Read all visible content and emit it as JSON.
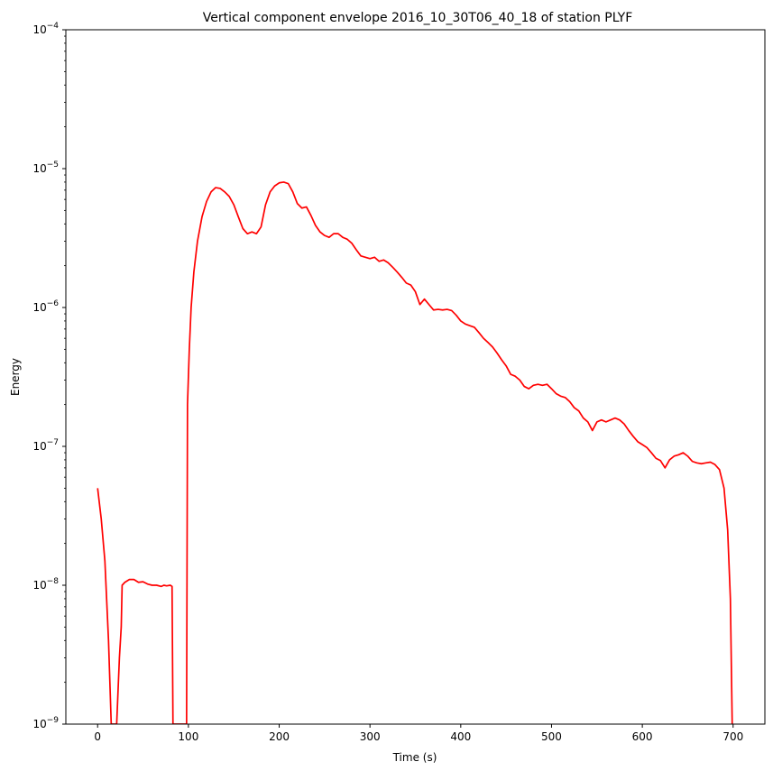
{
  "chart_data": {
    "type": "line",
    "title": "Vertical component envelope 2016_10_30T06_40_18 of station PLYF",
    "xlabel": "Time (s)",
    "ylabel": "Energy",
    "xlim": [
      -35,
      735
    ],
    "ylim": [
      1e-09,
      0.0001
    ],
    "yscale": "log",
    "grid": false,
    "x_ticks": [
      0,
      100,
      200,
      300,
      400,
      500,
      600,
      700
    ],
    "x_tick_labels": [
      "0",
      "100",
      "200",
      "300",
      "400",
      "500",
      "600",
      "700"
    ],
    "y_ticks": [
      1e-09,
      1e-08,
      1e-07,
      1e-06,
      1e-05,
      0.0001
    ],
    "y_tick_labels": [
      {
        "base": "10",
        "exp": "−9"
      },
      {
        "base": "10",
        "exp": "−8"
      },
      {
        "base": "10",
        "exp": "−7"
      },
      {
        "base": "10",
        "exp": "−6"
      },
      {
        "base": "10",
        "exp": "−5"
      },
      {
        "base": "10",
        "exp": "−4"
      }
    ],
    "series": [
      {
        "color": "#ff0000",
        "points": [
          [
            0,
            5e-08
          ],
          [
            4,
            3e-08
          ],
          [
            8,
            1.5e-08
          ],
          [
            12,
            4e-09
          ],
          [
            15,
            1e-09
          ],
          [
            21,
            1e-09
          ],
          [
            24,
            3e-09
          ],
          [
            26,
            5e-09
          ],
          [
            27,
            1e-08
          ],
          [
            30,
            1.05e-08
          ],
          [
            35,
            1.1e-08
          ],
          [
            40,
            1.1e-08
          ],
          [
            45,
            1.05e-08
          ],
          [
            50,
            1.06e-08
          ],
          [
            55,
            1.02e-08
          ],
          [
            60,
            1e-08
          ],
          [
            65,
            1e-08
          ],
          [
            70,
            9.8e-09
          ],
          [
            73,
            1e-08
          ],
          [
            76,
            9.9e-09
          ],
          [
            80,
            1e-08
          ],
          [
            82,
            9.8e-09
          ],
          [
            83,
            1e-09
          ],
          [
            98,
            1e-09
          ],
          [
            99,
            2e-07
          ],
          [
            101,
            5e-07
          ],
          [
            103,
            1e-06
          ],
          [
            106,
            1.8e-06
          ],
          [
            110,
            3e-06
          ],
          [
            115,
            4.5e-06
          ],
          [
            120,
            5.8e-06
          ],
          [
            125,
            6.8e-06
          ],
          [
            130,
            7.3e-06
          ],
          [
            135,
            7.2e-06
          ],
          [
            140,
            6.8e-06
          ],
          [
            145,
            6.3e-06
          ],
          [
            150,
            5.5e-06
          ],
          [
            155,
            4.5e-06
          ],
          [
            160,
            3.7e-06
          ],
          [
            165,
            3.4e-06
          ],
          [
            170,
            3.5e-06
          ],
          [
            175,
            3.4e-06
          ],
          [
            180,
            3.8e-06
          ],
          [
            185,
            5.5e-06
          ],
          [
            190,
            6.8e-06
          ],
          [
            195,
            7.5e-06
          ],
          [
            200,
            7.9e-06
          ],
          [
            205,
            8e-06
          ],
          [
            210,
            7.8e-06
          ],
          [
            215,
            6.8e-06
          ],
          [
            220,
            5.6e-06
          ],
          [
            225,
            5.2e-06
          ],
          [
            230,
            5.3e-06
          ],
          [
            235,
            4.6e-06
          ],
          [
            240,
            3.9e-06
          ],
          [
            245,
            3.5e-06
          ],
          [
            250,
            3.3e-06
          ],
          [
            255,
            3.2e-06
          ],
          [
            260,
            3.4e-06
          ],
          [
            265,
            3.4e-06
          ],
          [
            270,
            3.2e-06
          ],
          [
            275,
            3.1e-06
          ],
          [
            280,
            2.9e-06
          ],
          [
            285,
            2.6e-06
          ],
          [
            290,
            2.35e-06
          ],
          [
            295,
            2.3e-06
          ],
          [
            300,
            2.25e-06
          ],
          [
            305,
            2.3e-06
          ],
          [
            310,
            2.15e-06
          ],
          [
            315,
            2.2e-06
          ],
          [
            320,
            2.1e-06
          ],
          [
            325,
            1.95e-06
          ],
          [
            330,
            1.8e-06
          ],
          [
            335,
            1.65e-06
          ],
          [
            340,
            1.5e-06
          ],
          [
            345,
            1.45e-06
          ],
          [
            350,
            1.3e-06
          ],
          [
            355,
            1.05e-06
          ],
          [
            360,
            1.15e-06
          ],
          [
            365,
            1.05e-06
          ],
          [
            370,
            9.6e-07
          ],
          [
            375,
            9.7e-07
          ],
          [
            380,
            9.6e-07
          ],
          [
            385,
            9.7e-07
          ],
          [
            390,
            9.5e-07
          ],
          [
            395,
            8.8e-07
          ],
          [
            400,
            8e-07
          ],
          [
            405,
            7.6e-07
          ],
          [
            410,
            7.4e-07
          ],
          [
            415,
            7.2e-07
          ],
          [
            420,
            6.6e-07
          ],
          [
            425,
            6e-07
          ],
          [
            430,
            5.6e-07
          ],
          [
            435,
            5.2e-07
          ],
          [
            440,
            4.7e-07
          ],
          [
            445,
            4.2e-07
          ],
          [
            450,
            3.8e-07
          ],
          [
            455,
            3.3e-07
          ],
          [
            460,
            3.2e-07
          ],
          [
            465,
            3e-07
          ],
          [
            470,
            2.7e-07
          ],
          [
            475,
            2.6e-07
          ],
          [
            480,
            2.75e-07
          ],
          [
            485,
            2.8e-07
          ],
          [
            490,
            2.75e-07
          ],
          [
            495,
            2.8e-07
          ],
          [
            500,
            2.6e-07
          ],
          [
            505,
            2.4e-07
          ],
          [
            510,
            2.3e-07
          ],
          [
            515,
            2.25e-07
          ],
          [
            520,
            2.1e-07
          ],
          [
            525,
            1.9e-07
          ],
          [
            530,
            1.8e-07
          ],
          [
            535,
            1.6e-07
          ],
          [
            540,
            1.5e-07
          ],
          [
            545,
            1.3e-07
          ],
          [
            550,
            1.5e-07
          ],
          [
            555,
            1.55e-07
          ],
          [
            560,
            1.5e-07
          ],
          [
            565,
            1.55e-07
          ],
          [
            570,
            1.6e-07
          ],
          [
            575,
            1.55e-07
          ],
          [
            580,
            1.45e-07
          ],
          [
            585,
            1.3e-07
          ],
          [
            590,
            1.18e-07
          ],
          [
            595,
            1.08e-07
          ],
          [
            600,
            1.03e-07
          ],
          [
            605,
            9.8e-08
          ],
          [
            610,
            9e-08
          ],
          [
            615,
            8.2e-08
          ],
          [
            620,
            7.9e-08
          ],
          [
            625,
            7e-08
          ],
          [
            630,
            8e-08
          ],
          [
            635,
            8.5e-08
          ],
          [
            640,
            8.7e-08
          ],
          [
            645,
            9e-08
          ],
          [
            650,
            8.5e-08
          ],
          [
            655,
            7.8e-08
          ],
          [
            660,
            7.6e-08
          ],
          [
            665,
            7.5e-08
          ],
          [
            670,
            7.6e-08
          ],
          [
            675,
            7.7e-08
          ],
          [
            680,
            7.4e-08
          ],
          [
            685,
            6.8e-08
          ],
          [
            690,
            5e-08
          ],
          [
            694,
            2.5e-08
          ],
          [
            697,
            8e-09
          ],
          [
            699,
            1e-09
          ]
        ]
      }
    ]
  }
}
